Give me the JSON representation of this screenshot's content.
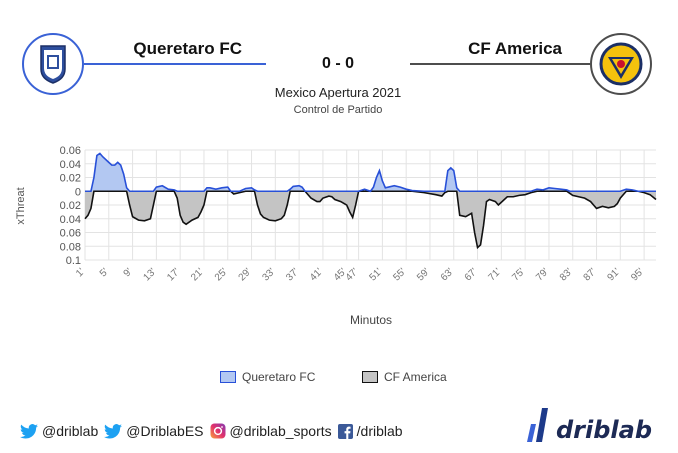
{
  "header": {
    "home_team": "Queretaro FC",
    "away_team": "CF America",
    "score": "0 - 0",
    "competition": "Mexico Apertura 2021",
    "subtitle": "Control de Partido",
    "home_color": "#3a62d6",
    "away_color": "#4d4d4d"
  },
  "chart_data": {
    "type": "area",
    "ylabel": "xThreat",
    "xlabel": "Minutos",
    "ylim": [
      -0.1,
      0.06
    ],
    "y_ticks": [
      0.06,
      0.04,
      0.02,
      0,
      -0.02,
      -0.04,
      -0.06,
      -0.08,
      -0.1
    ],
    "y_tick_labels": [
      "0.06",
      "0.04",
      "0.02",
      "0",
      "0.02",
      "0.04",
      "0.06",
      "0.08",
      "0.1"
    ],
    "xlim": [
      1,
      97
    ],
    "x_ticks": [
      1,
      5,
      9,
      13,
      17,
      21,
      25,
      29,
      33,
      37,
      41,
      45,
      47,
      51,
      55,
      59,
      63,
      67,
      71,
      75,
      79,
      83,
      87,
      91,
      95
    ],
    "x_tick_labels": [
      "1'",
      "5'",
      "9'",
      "13'",
      "17'",
      "21'",
      "25'",
      "29'",
      "33'",
      "37'",
      "41'",
      "45'",
      "47'",
      "51'",
      "55'",
      "59'",
      "63'",
      "67'",
      "71'",
      "75'",
      "79'",
      "83'",
      "87'",
      "91'",
      "95'"
    ],
    "grid": true,
    "series": [
      {
        "name": "Queretaro FC",
        "color": "#2850d8",
        "fill": "#b3c8f2"
      },
      {
        "name": "CF America",
        "color": "#111111",
        "fill": "#c4c4c4"
      }
    ],
    "points": [
      [
        1,
        -0.04
      ],
      [
        1.5,
        -0.035
      ],
      [
        2,
        -0.025
      ],
      [
        2.5,
        0.02
      ],
      [
        3,
        0.052
      ],
      [
        3.5,
        0.055
      ],
      [
        4,
        0.05
      ],
      [
        5,
        0.042
      ],
      [
        5.5,
        0.038
      ],
      [
        6,
        0.038
      ],
      [
        6.5,
        0.042
      ],
      [
        7,
        0.038
      ],
      [
        7.5,
        0.025
      ],
      [
        8,
        0.005
      ],
      [
        8.5,
        -0.02
      ],
      [
        9,
        -0.037
      ],
      [
        10,
        -0.042
      ],
      [
        11,
        -0.043
      ],
      [
        12,
        -0.04
      ],
      [
        12.5,
        -0.02
      ],
      [
        13,
        0.006
      ],
      [
        14,
        0.008
      ],
      [
        15,
        0.003
      ],
      [
        16,
        0.002
      ],
      [
        16.5,
        -0.01
      ],
      [
        17,
        -0.035
      ],
      [
        17.5,
        -0.045
      ],
      [
        18,
        -0.048
      ],
      [
        19,
        -0.042
      ],
      [
        20,
        -0.038
      ],
      [
        20.5,
        -0.03
      ],
      [
        21,
        -0.02
      ],
      [
        21.5,
        0.005
      ],
      [
        22,
        0.005
      ],
      [
        23,
        0.003
      ],
      [
        24,
        0.005
      ],
      [
        25,
        0.006
      ],
      [
        25.5,
        0.0
      ],
      [
        26,
        -0.004
      ],
      [
        27,
        -0.002
      ],
      [
        28,
        0.004
      ],
      [
        29,
        0.005
      ],
      [
        29.5,
        0.002
      ],
      [
        30,
        -0.02
      ],
      [
        30.5,
        -0.033
      ],
      [
        31,
        -0.038
      ],
      [
        32,
        -0.042
      ],
      [
        33,
        -0.043
      ],
      [
        34,
        -0.04
      ],
      [
        34.5,
        -0.035
      ],
      [
        35,
        -0.02
      ],
      [
        35.5,
        0.003
      ],
      [
        36,
        0.007
      ],
      [
        37,
        0.008
      ],
      [
        37.5,
        0.006
      ],
      [
        38,
        0.0
      ],
      [
        39,
        -0.01
      ],
      [
        40,
        -0.015
      ],
      [
        40.5,
        -0.015
      ],
      [
        41,
        -0.01
      ],
      [
        42,
        -0.007
      ],
      [
        42.5,
        -0.008
      ],
      [
        43,
        -0.012
      ],
      [
        44,
        -0.015
      ],
      [
        45,
        -0.02
      ],
      [
        45.5,
        -0.03
      ],
      [
        46,
        -0.038
      ],
      [
        46.5,
        -0.02
      ],
      [
        47,
        0.0
      ],
      [
        48,
        0.003
      ],
      [
        49,
        0.0
      ],
      [
        49.5,
        0.006
      ],
      [
        50,
        0.02
      ],
      [
        50.5,
        0.03
      ],
      [
        51,
        0.015
      ],
      [
        51.5,
        0.005
      ],
      [
        53,
        0.008
      ],
      [
        54,
        0.006
      ],
      [
        55,
        0.003
      ],
      [
        56,
        0.001
      ],
      [
        58,
        -0.002
      ],
      [
        60,
        -0.005
      ],
      [
        61,
        -0.007
      ],
      [
        61.5,
        -0.002
      ],
      [
        62,
        0.03
      ],
      [
        62.5,
        0.034
      ],
      [
        63,
        0.03
      ],
      [
        63.5,
        0.005
      ],
      [
        64,
        -0.035
      ],
      [
        65,
        -0.037
      ],
      [
        66,
        -0.032
      ],
      [
        66.5,
        -0.06
      ],
      [
        67,
        -0.082
      ],
      [
        67.5,
        -0.078
      ],
      [
        68,
        -0.05
      ],
      [
        68.5,
        -0.015
      ],
      [
        69,
        -0.012
      ],
      [
        70,
        -0.015
      ],
      [
        70.5,
        -0.02
      ],
      [
        71,
        -0.016
      ],
      [
        72,
        -0.008
      ],
      [
        73,
        -0.008
      ],
      [
        74,
        -0.006
      ],
      [
        75,
        -0.005
      ],
      [
        76,
        -0.002
      ],
      [
        77,
        0.003
      ],
      [
        78,
        0.002
      ],
      [
        79,
        0.005
      ],
      [
        80,
        0.004
      ],
      [
        81,
        0.003
      ],
      [
        82,
        0.002
      ],
      [
        82.5,
        -0.003
      ],
      [
        83,
        -0.006
      ],
      [
        84,
        -0.008
      ],
      [
        85,
        -0.01
      ],
      [
        86,
        -0.015
      ],
      [
        86.5,
        -0.02
      ],
      [
        87,
        -0.025
      ],
      [
        88,
        -0.022
      ],
      [
        89,
        -0.024
      ],
      [
        90,
        -0.022
      ],
      [
        90.5,
        -0.018
      ],
      [
        91,
        -0.01
      ],
      [
        92,
        0.003
      ],
      [
        93,
        0.002
      ],
      [
        94,
        0.0
      ],
      [
        95,
        -0.002
      ],
      [
        96,
        -0.005
      ],
      [
        97,
        -0.012
      ]
    ]
  },
  "legend": {
    "home_label": "Queretaro FC",
    "away_label": "CF America"
  },
  "footer": {
    "items": [
      "@driblab",
      "@DriblabES",
      "@driblab_sports",
      "/driblab"
    ],
    "brand": "driblab"
  }
}
